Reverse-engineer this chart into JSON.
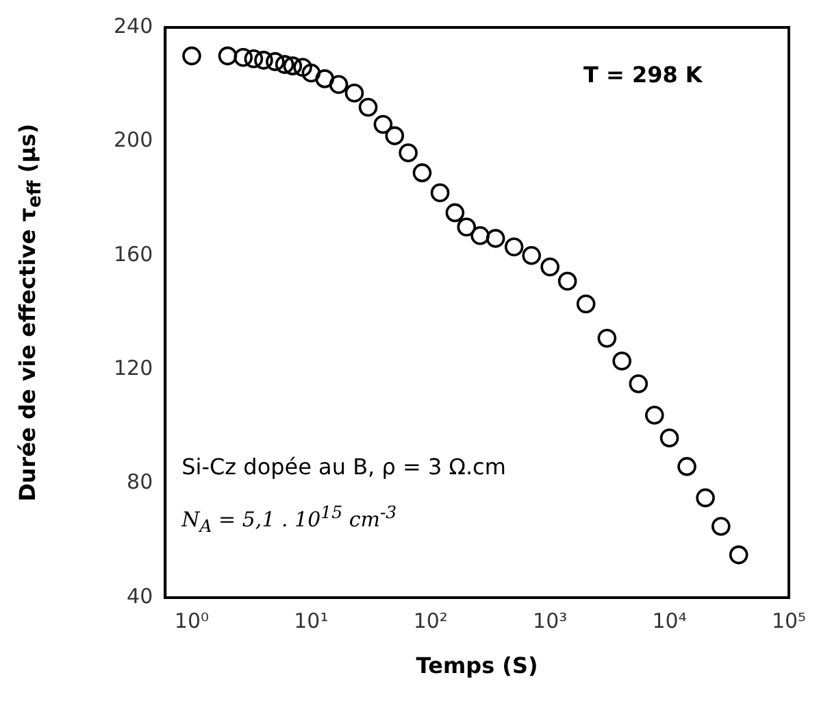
{
  "chart_data": {
    "type": "scatter",
    "xlabel": "Temps (S)",
    "ylabel": "Durée de vie effective τ$_{eff}$ (µs)",
    "annotations": [
      "T = 298 K",
      "Si-Cz dopée au B, ρ = 3 Ω.cm",
      "N$_{A}$ = 5,1 . 10$^{15}$ cm$^{-3}$"
    ],
    "log": "x",
    "marker": "circle",
    "grid": false,
    "xlim": [
      0.6,
      100000
    ],
    "xticks": [
      {
        "value": 1,
        "label": "10⁰"
      },
      {
        "value": 10,
        "label": "10¹"
      },
      {
        "value": 100,
        "label": "10²"
      },
      {
        "value": 1000,
        "label": "10³"
      },
      {
        "value": 10000,
        "label": "10⁴"
      },
      {
        "value": 100000,
        "label": "10⁵"
      }
    ],
    "ylim": [
      40,
      240
    ],
    "yticks": [
      40,
      80,
      120,
      160,
      200,
      240
    ],
    "series": [
      {
        "color": "#000000",
        "x": [
          1,
          2,
          2.7,
          3.3,
          4,
          5,
          6,
          7,
          8.5,
          10,
          13,
          17,
          23,
          30,
          40,
          50,
          65,
          85,
          120,
          160,
          200,
          260,
          350,
          500,
          700,
          1000,
          1400,
          2000,
          3000,
          4000,
          5500,
          7500,
          10000,
          14000,
          20000,
          27000,
          38000
        ],
        "values": [
          230,
          230,
          229.5,
          229,
          228.5,
          228,
          227,
          226.5,
          226,
          224,
          222,
          220,
          217,
          212,
          206,
          202,
          196,
          189,
          182,
          175,
          170,
          167,
          166,
          163,
          160,
          156,
          151,
          143,
          131,
          123,
          115,
          104,
          96,
          86,
          75,
          65,
          55
        ]
      }
    ]
  }
}
